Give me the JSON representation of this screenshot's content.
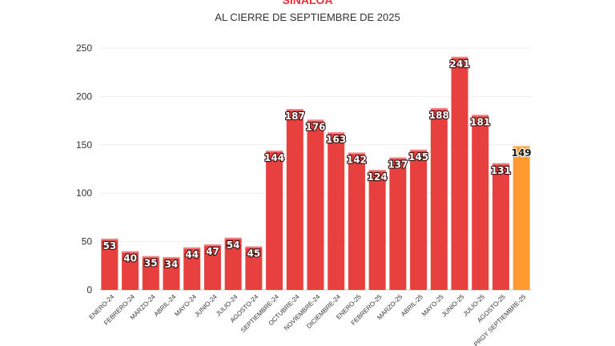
{
  "chart_data": {
    "type": "bar",
    "title": "SINALOA",
    "subtitle": "AL CIERRE DE SEPTIEMBRE DE 2025",
    "categories": [
      "ENERO-24",
      "FEBRERO-24",
      "MARZO-24",
      "ABRIL-24",
      "MAYO-24",
      "JUNIO-24",
      "JULIO-24",
      "AGOSTO-24",
      "SEPTIEMBRE-24",
      "OCTUBRE-24",
      "NOVIEMBRE-24",
      "DICIEMBRE-24",
      "ENERO-25",
      "FEBRERO-25",
      "MARZO-25",
      "ABRIL-25",
      "MAYO-25",
      "JUNIO-25",
      "JULIO-25",
      "AGOSTO-25",
      "PROY SEPTIEMBRE-25"
    ],
    "values": [
      53,
      40,
      35,
      34,
      44,
      47,
      54,
      45,
      144,
      187,
      176,
      163,
      142,
      124,
      137,
      145,
      188,
      241,
      181,
      131,
      149
    ],
    "ylim": [
      0,
      250
    ],
    "yticks": [
      0,
      50,
      100,
      150,
      200,
      250
    ],
    "xlabel": "",
    "ylabel": "",
    "grid": true,
    "bar_color": "#e8403f",
    "highlight_color": "#ff9a2e",
    "highlight_index": 20
  }
}
